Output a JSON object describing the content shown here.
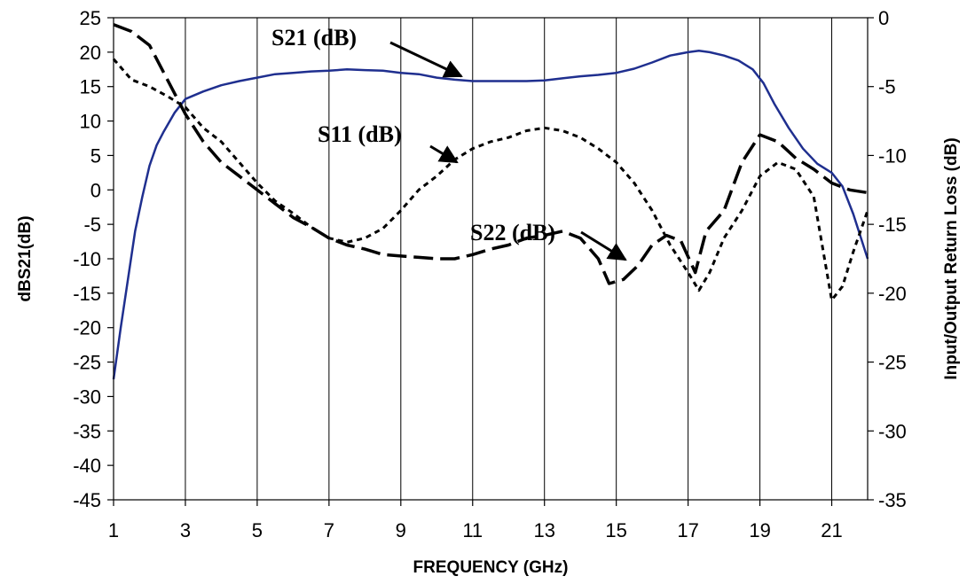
{
  "chart_data": {
    "type": "line",
    "title": "",
    "xlabel": "FREQUENCY (GHz)",
    "ylabel_left": "dBS21(dB)",
    "ylabel_right": "Input/Output Return Loss (dB)",
    "xlim": [
      1,
      22
    ],
    "ylim_left": [
      -45,
      25
    ],
    "ylim_right": [
      -35,
      0
    ],
    "x_ticks": [
      1,
      3,
      5,
      7,
      9,
      11,
      13,
      15,
      17,
      19,
      21
    ],
    "x_tick_labels": [
      "1",
      "3",
      "5",
      "7",
      "9",
      "11",
      "13",
      "15",
      "17",
      "19",
      "21"
    ],
    "y_left_ticks": [
      25,
      20,
      15,
      10,
      5,
      0,
      -5,
      -10,
      -15,
      -20,
      -25,
      -30,
      -35,
      -40,
      -45
    ],
    "y_left_tick_labels": [
      "25",
      "20",
      "15",
      "10",
      "5",
      "0",
      "-5",
      "-10",
      "-15",
      "-20",
      "-25",
      "-30",
      "-35",
      "-40",
      "-45"
    ],
    "y_right_ticks": [
      0,
      -5,
      -10,
      -15,
      -20,
      -25,
      -30,
      -35
    ],
    "y_right_tick_labels": [
      "0",
      "-5",
      "-10",
      "-15",
      "-20",
      "-25",
      "-30",
      "-35"
    ],
    "grid": "vertical",
    "series": [
      {
        "name": "S21 (dB)",
        "axis": "left",
        "style": "solid",
        "color": "#1f2f8f",
        "x": [
          1.0,
          1.2,
          1.4,
          1.6,
          1.8,
          2.0,
          2.2,
          2.4,
          2.7,
          3.0,
          3.5,
          4.0,
          4.5,
          5.0,
          5.5,
          6.0,
          6.5,
          7.0,
          7.5,
          8.0,
          8.5,
          9.0,
          9.5,
          10.0,
          10.5,
          11.0,
          11.5,
          12.0,
          12.5,
          13.0,
          13.5,
          14.0,
          14.5,
          15.0,
          15.5,
          16.0,
          16.5,
          17.0,
          17.3,
          17.6,
          18.0,
          18.4,
          18.8,
          19.1,
          19.4,
          19.8,
          20.2,
          20.6,
          21.0,
          21.3,
          21.6,
          22.0
        ],
        "y": [
          -27.5,
          -20,
          -13,
          -6,
          -1,
          3.5,
          6.5,
          8.5,
          11.2,
          13.2,
          14.3,
          15.2,
          15.8,
          16.3,
          16.8,
          17.0,
          17.2,
          17.3,
          17.5,
          17.4,
          17.3,
          17.0,
          16.8,
          16.3,
          16.0,
          15.8,
          15.8,
          15.8,
          15.8,
          15.9,
          16.2,
          16.5,
          16.7,
          17.0,
          17.6,
          18.5,
          19.5,
          20.0,
          20.2,
          20.0,
          19.5,
          18.8,
          17.5,
          15.5,
          12.5,
          9.0,
          6.0,
          3.8,
          2.5,
          0.5,
          -3.5,
          -10.0
        ]
      },
      {
        "name": "S11 (dB)",
        "axis": "right",
        "style": "dotted",
        "color": "#000000",
        "x": [
          1.0,
          1.5,
          2.0,
          2.5,
          3.0,
          3.5,
          4.0,
          4.5,
          5.0,
          5.5,
          6.0,
          6.5,
          7.0,
          7.5,
          8.0,
          8.5,
          9.0,
          9.5,
          10.0,
          10.5,
          11.0,
          11.5,
          12.0,
          12.5,
          13.0,
          13.5,
          14.0,
          14.5,
          15.0,
          15.5,
          16.0,
          16.5,
          17.0,
          17.3,
          17.6,
          18.0,
          18.5,
          19.0,
          19.5,
          20.0,
          20.5,
          21.0,
          21.3,
          21.6,
          22.0
        ],
        "y": [
          -3.0,
          -4.5,
          -5.0,
          -5.7,
          -6.5,
          -8.0,
          -9.0,
          -10.5,
          -12.0,
          -13.3,
          -14.2,
          -15.2,
          -16.0,
          -16.3,
          -16.0,
          -15.3,
          -14.0,
          -12.5,
          -11.5,
          -10.3,
          -9.5,
          -9.0,
          -8.7,
          -8.2,
          -8.0,
          -8.2,
          -8.7,
          -9.5,
          -10.5,
          -12.0,
          -14.0,
          -16.5,
          -18.5,
          -19.8,
          -18.5,
          -16.0,
          -14.0,
          -11.5,
          -10.5,
          -11.0,
          -13.0,
          -20.5,
          -19.5,
          -17.0,
          -14.0
        ]
      },
      {
        "name": "S22 (dB)",
        "axis": "right",
        "style": "dashed",
        "color": "#000000",
        "x": [
          1.0,
          1.5,
          2.0,
          2.5,
          3.0,
          3.5,
          4.0,
          4.5,
          5.0,
          5.5,
          6.0,
          6.5,
          7.0,
          7.5,
          8.0,
          8.5,
          9.0,
          9.5,
          10.0,
          10.5,
          11.0,
          11.5,
          12.0,
          12.5,
          13.0,
          13.5,
          14.0,
          14.5,
          14.8,
          15.2,
          15.6,
          16.0,
          16.4,
          16.8,
          17.2,
          17.5,
          18.0,
          18.5,
          19.0,
          19.5,
          20.0,
          20.5,
          21.0,
          21.5,
          22.0
        ],
        "y": [
          -0.5,
          -1.0,
          -2.0,
          -4.5,
          -7.0,
          -9.0,
          -10.5,
          -11.5,
          -12.5,
          -13.5,
          -14.5,
          -15.2,
          -16.0,
          -16.5,
          -16.8,
          -17.2,
          -17.3,
          -17.4,
          -17.5,
          -17.5,
          -17.2,
          -16.8,
          -16.5,
          -16.0,
          -15.8,
          -15.5,
          -16.0,
          -17.5,
          -19.3,
          -19.0,
          -18.0,
          -16.5,
          -15.8,
          -16.2,
          -18.5,
          -15.5,
          -14.0,
          -10.5,
          -8.5,
          -9.0,
          -10.2,
          -11.0,
          -12.0,
          -12.5,
          -12.7
        ]
      }
    ],
    "annotations": [
      {
        "text": "S21 (dB)",
        "series": "S21 (dB)"
      },
      {
        "text": "S11 (dB)",
        "series": "S11 (dB)"
      },
      {
        "text": "S22 (dB)",
        "series": "S22 (dB)"
      }
    ]
  }
}
